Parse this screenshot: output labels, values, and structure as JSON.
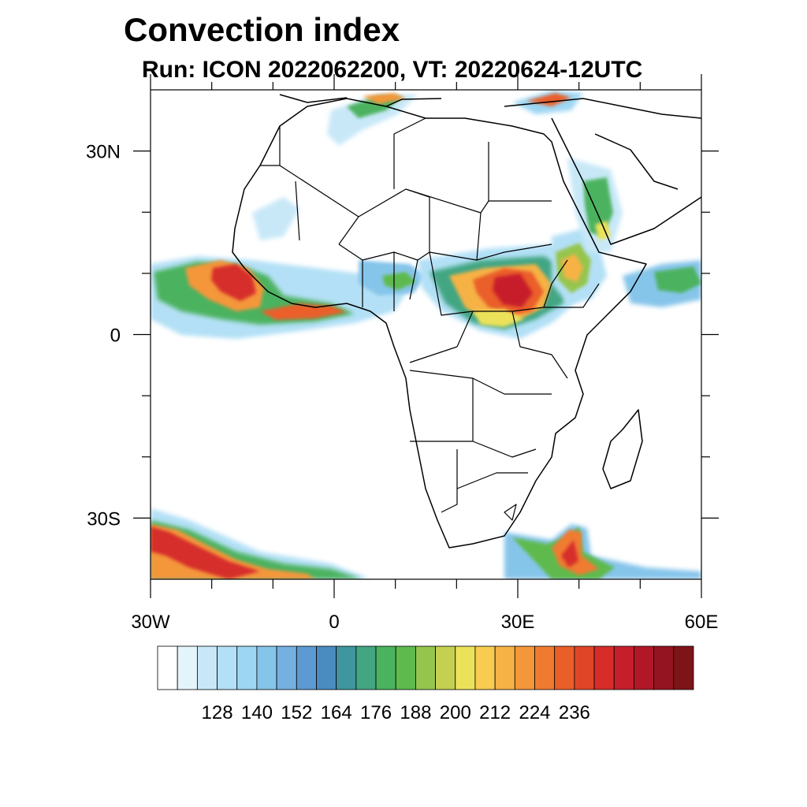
{
  "title": "Convection index",
  "subtitle": "Run: ICON 2022062200,  VT: 20220624-12UTC",
  "map": {
    "projection": "cylindrical-equidistant",
    "lon_range": [
      -30,
      60
    ],
    "lat_range": [
      -40,
      40
    ],
    "lon_ticks": [
      {
        "value": -30,
        "label": "30W"
      },
      {
        "value": 0,
        "label": "0"
      },
      {
        "value": 30,
        "label": "30E"
      },
      {
        "value": 60,
        "label": "60E"
      }
    ],
    "lon_minor": [
      -20,
      -10,
      10,
      20,
      40,
      50
    ],
    "lat_ticks": [
      {
        "value": 30,
        "label": "30N"
      },
      {
        "value": 0,
        "label": "0"
      },
      {
        "value": -30,
        "label": "30S"
      }
    ],
    "lat_minor": [
      20,
      10,
      -10,
      -20
    ]
  },
  "colorbar": {
    "colors": [
      "#ffffff",
      "#e4f4fb",
      "#c8e8f8",
      "#b3e0f6",
      "#9cd6f3",
      "#86c5ea",
      "#74b1e0",
      "#5d9ad1",
      "#4a8cc0",
      "#3f969e",
      "#42a683",
      "#4bb25e",
      "#5eba4d",
      "#96c54e",
      "#c5d050",
      "#ece25a",
      "#f7cc50",
      "#f6b245",
      "#f4973a",
      "#f07b30",
      "#ea5f29",
      "#e04528",
      "#d62d2a",
      "#c71e2b",
      "#b01829",
      "#951422",
      "#7f1418"
    ],
    "labels": [
      "128",
      "140",
      "152",
      "164",
      "176",
      "188",
      "200",
      "212",
      "224",
      "236"
    ]
  },
  "convection_areas": [
    {
      "region": "West African coast / Gulf of Guinea",
      "intensity": 236
    },
    {
      "region": "Central African Republic / South Sudan",
      "intensity": 236
    },
    {
      "region": "Ethiopian Highlands",
      "intensity": 200
    },
    {
      "region": "Southern Ocean south of Africa",
      "intensity": 224
    },
    {
      "region": "Mediterranean / Turkey",
      "intensity": 212
    },
    {
      "region": "Arabian Peninsula (Yemen)",
      "intensity": 188
    }
  ]
}
